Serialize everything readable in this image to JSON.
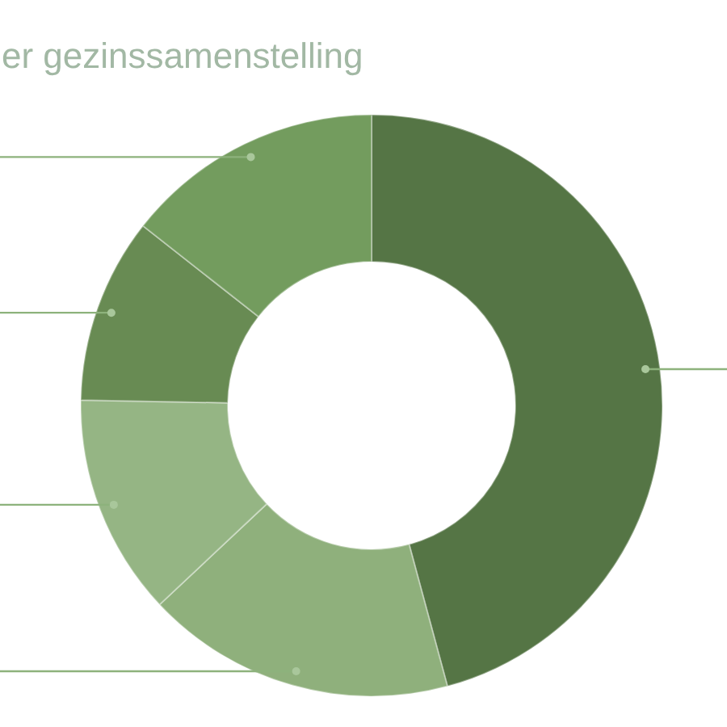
{
  "chart_data": {
    "type": "donut",
    "title": "er gezinssamenstelling",
    "categories": [
      null,
      null,
      null,
      null,
      null
    ],
    "values": [
      45.8,
      17.2,
      12.3,
      10.3,
      14.4
    ],
    "colors": [
      "#557545",
      "#8fb07c",
      "#95b584",
      "#688b53",
      "#739c5e"
    ]
  }
}
